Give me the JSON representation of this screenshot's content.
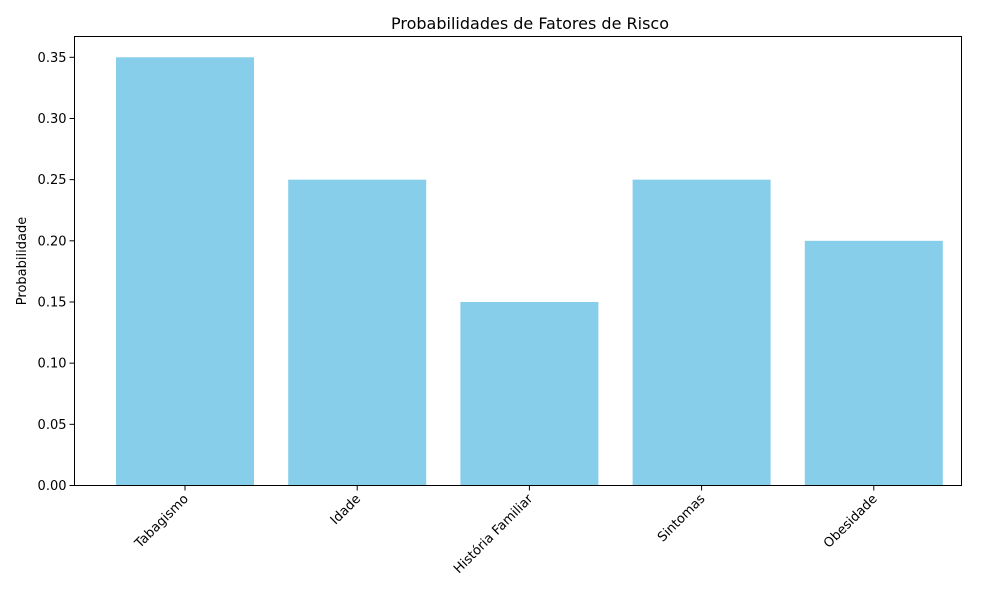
{
  "chart_data": {
    "type": "bar",
    "title": "Probabilidades de Fatores de Risco",
    "xlabel": "",
    "ylabel": "Probabilidade",
    "categories": [
      "Tabagismo",
      "Idade",
      "História Familiar",
      "Sintomas",
      "Obesidade"
    ],
    "values": [
      0.35,
      0.25,
      0.15,
      0.25,
      0.2
    ],
    "ylim": [
      0,
      0.367
    ],
    "yticks": [
      "0.00",
      "0.05",
      "0.10",
      "0.15",
      "0.20",
      "0.25",
      "0.30",
      "0.35"
    ],
    "bar_color": "#87CEEB",
    "grid": false,
    "legend": "none"
  }
}
